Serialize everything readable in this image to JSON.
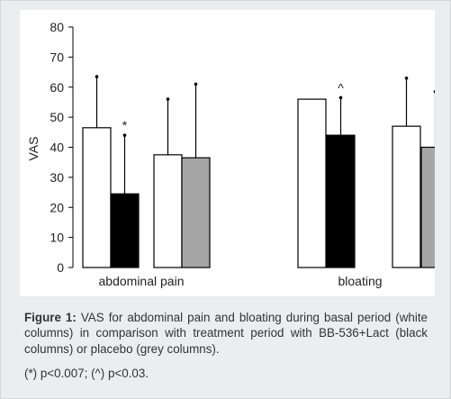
{
  "chart_data": {
    "type": "bar",
    "ylabel": "VAS",
    "ylim": [
      0,
      80
    ],
    "yticks": [
      0,
      10,
      20,
      30,
      40,
      50,
      60,
      70,
      80
    ],
    "grid": false,
    "groups": [
      {
        "label": "abdominal pain",
        "bars": [
          {
            "series": "basal",
            "value": 46.5,
            "error": 17,
            "marker": ""
          },
          {
            "series": "BB-536+Lact",
            "value": 24.5,
            "error": 19.5,
            "marker": "*"
          },
          {
            "series": "basal",
            "value": 37.5,
            "error": 18.5,
            "marker": ""
          },
          {
            "series": "placebo",
            "value": 36.5,
            "error": 24.5,
            "marker": ""
          }
        ]
      },
      {
        "label": "bloating",
        "bars": [
          {
            "series": "basal",
            "value": 56,
            "error": 0,
            "marker": ""
          },
          {
            "series": "BB-536+Lact",
            "value": 44,
            "error": 12.5,
            "marker": "^"
          },
          {
            "series": "basal",
            "value": 47,
            "error": 16,
            "marker": ""
          },
          {
            "series": "placebo",
            "value": 40,
            "error": 18.5,
            "marker": ""
          }
        ]
      }
    ],
    "series_colors": {
      "basal": "#ffffff",
      "BB-536+Lact": "#000000",
      "placebo": "#a6a6a6"
    }
  },
  "caption": {
    "label": "Figure 1:",
    "text": "VAS for abdominal pain and bloating during basal period (white columns) in comparison with treatment period with BB-536+Lact (black columns) or placebo (grey columns).",
    "note": "(*) p<0.007; (^) p<0.03."
  }
}
